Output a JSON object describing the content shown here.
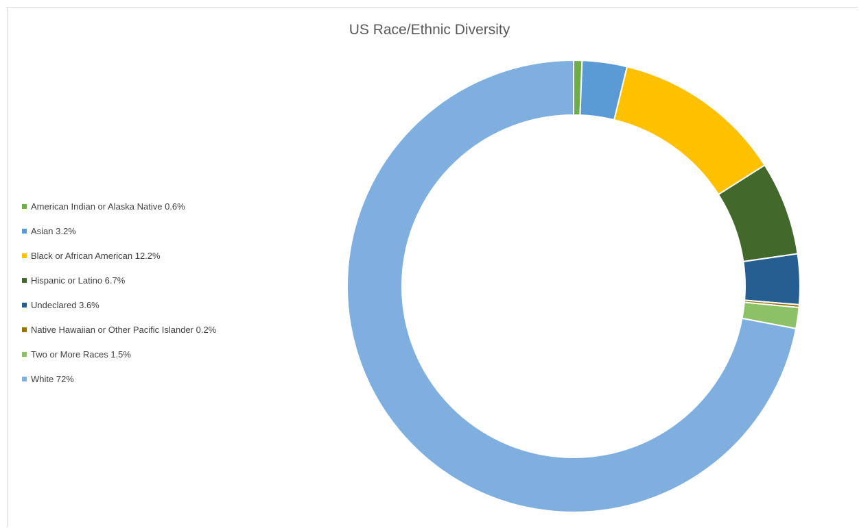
{
  "chart_data": {
    "type": "pie",
    "subtype": "donut",
    "title": "US Race/Ethnic Diversity",
    "legend_position": "left",
    "categories": [
      "American Indian or Alaska Native",
      "Asian",
      "Black or African American",
      "Hispanic or Latino",
      "Undeclared",
      "Native Hawaiian or Other Pacific Islander",
      "Two or More Races",
      "White"
    ],
    "values": [
      0.6,
      3.2,
      12.2,
      6.7,
      3.6,
      0.2,
      1.5,
      72
    ],
    "labels": [
      "American Indian or Alaska Native 0.6%",
      "Asian 3.2%",
      "Black or African American 12.2%",
      "Hispanic or Latino 6.7%",
      "Undeclared 3.6%",
      "Native Hawaiian or Other Pacific Islander 0.2%",
      "Two or More Races 1.5%",
      "White 72%"
    ],
    "colors": [
      "#70ad47",
      "#5b9bd5",
      "#ffc000",
      "#43682b",
      "#255e91",
      "#997300",
      "#8cc168",
      "#7eafde"
    ]
  }
}
